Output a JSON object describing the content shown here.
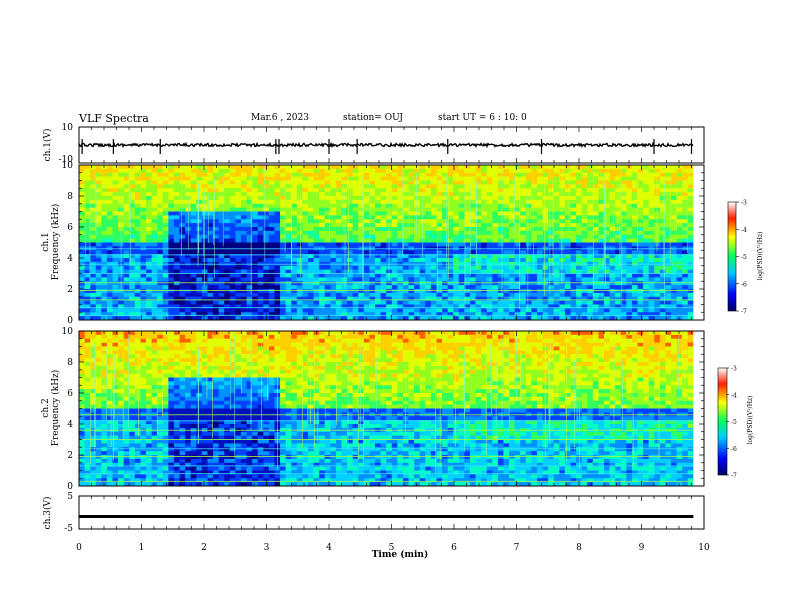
{
  "header": {
    "title": "VLF Spectra",
    "date": "Mar.6 , 2023",
    "station": "station= OUJ",
    "start_ut": "start UT = 6 : 10: 0"
  },
  "chart_data": [
    {
      "type": "line",
      "panel": "ch1-waveform",
      "ylabel": "ch.1(V)",
      "yticks": [
        "10",
        "-10"
      ],
      "ylim": [
        -10,
        10
      ],
      "baseline": 0,
      "spikes_min": [
        0.05,
        0.55,
        1.3,
        3.15,
        3.2,
        4.0,
        4.45,
        5.9,
        7.4,
        9.2,
        9.8
      ]
    },
    {
      "type": "heatmap",
      "panel": "ch1-spectrogram",
      "ylabel": "ch.1 Frequency (kHz)",
      "yticks": [
        "0",
        "2",
        "4",
        "6",
        "8",
        "10"
      ],
      "ylim": [
        0,
        10
      ],
      "xlim": [
        0,
        10
      ],
      "colorbar": {
        "label": "log(PSD)(V²/Hz)",
        "ticks": [
          "-3",
          "-4",
          "-5",
          "-6",
          "-7"
        ],
        "range": [
          -7,
          -3
        ]
      },
      "quiet_interval_min": [
        1.45,
        3.25
      ]
    },
    {
      "type": "heatmap",
      "panel": "ch2-spectrogram",
      "ylabel": "ch.2 Frequency (kHz)",
      "yticks": [
        "0",
        "2",
        "4",
        "6",
        "8",
        "10"
      ],
      "ylim": [
        0,
        10
      ],
      "xlim": [
        0,
        10
      ],
      "colorbar": {
        "label": "log(PSD)(V²/Hz)",
        "ticks": [
          "-3",
          "-4",
          "-5",
          "-6",
          "-7"
        ],
        "range": [
          -7,
          -3
        ]
      },
      "quiet_interval_min": [
        1.45,
        3.25
      ]
    },
    {
      "type": "line",
      "panel": "ch3-waveform",
      "ylabel": "ch.3(V)",
      "yticks": [
        "5",
        "-5"
      ],
      "ylim": [
        -5,
        5
      ],
      "level": -1.2
    }
  ],
  "x_axis": {
    "label": "Time (min)",
    "ticks": [
      "0",
      "1",
      "2",
      "3",
      "4",
      "5",
      "6",
      "7",
      "8",
      "9",
      "10"
    ],
    "data_end_min": 9.83
  }
}
